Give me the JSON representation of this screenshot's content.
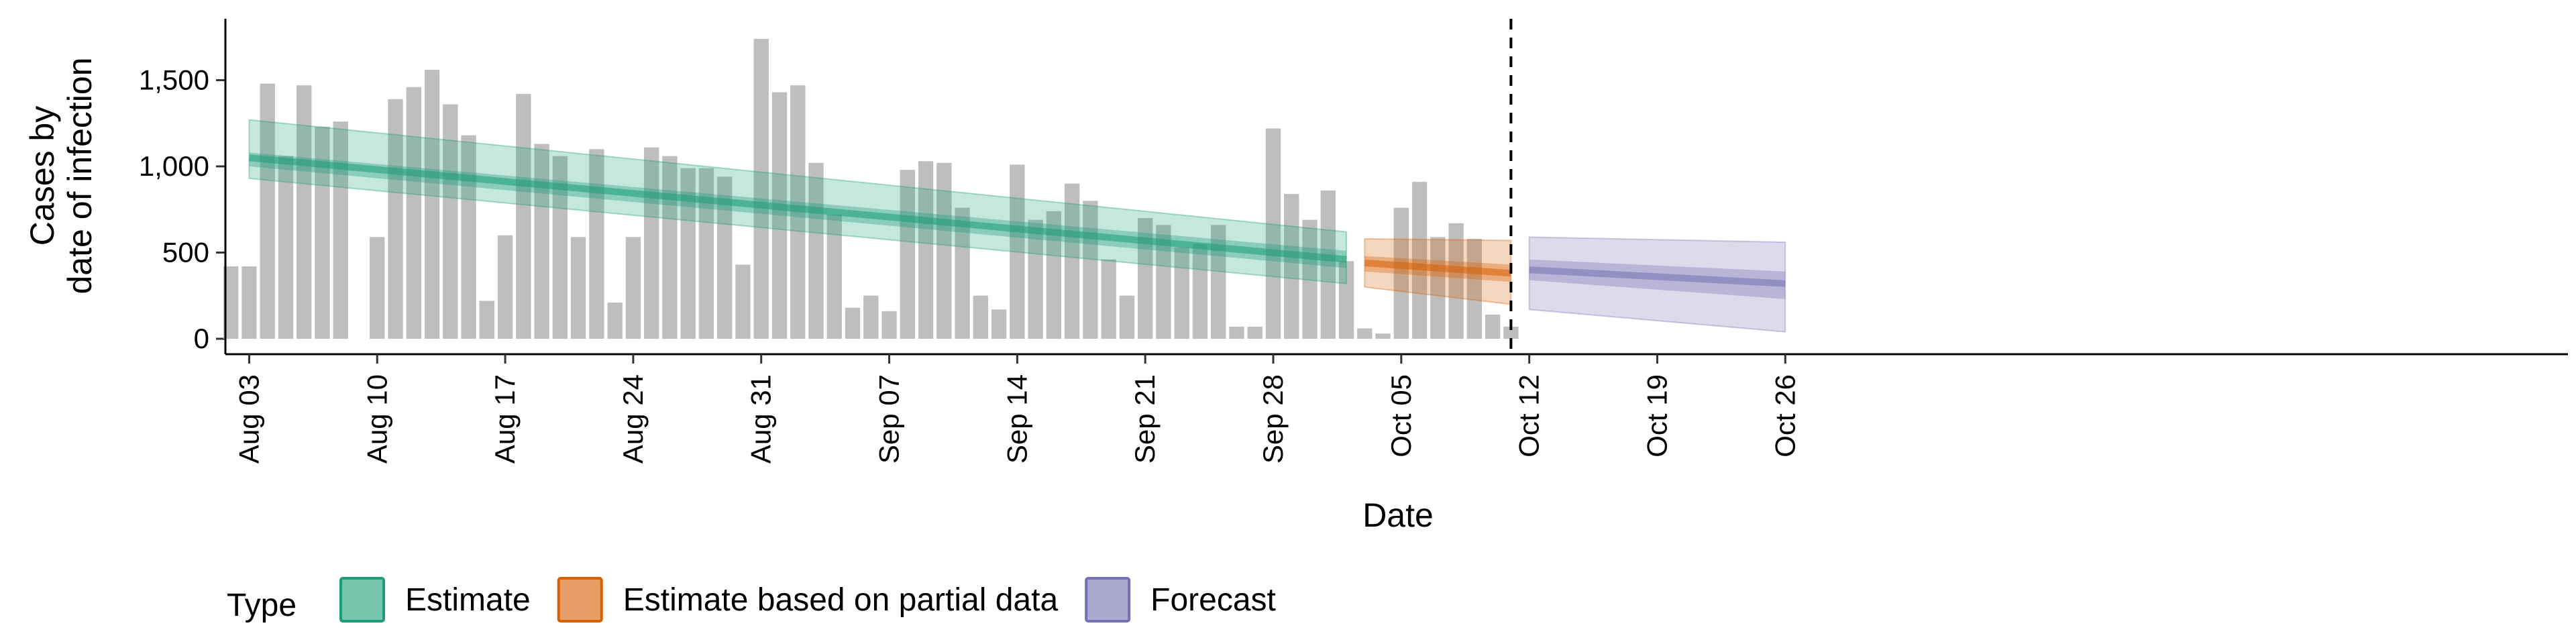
{
  "chart_data": {
    "type": "bar",
    "xlabel": "Date",
    "ylabel_lines": [
      "Cases by",
      "date of infection"
    ],
    "ylim": [
      0,
      1850
    ],
    "yticks": [
      {
        "value": 0,
        "label": "0"
      },
      {
        "value": 500,
        "label": "500"
      },
      {
        "value": 1000,
        "label": "1,000"
      },
      {
        "value": 1500,
        "label": "1,500"
      }
    ],
    "x_start_day": -1.3,
    "x_end_day": 126.8,
    "xticks": [
      {
        "day": 0,
        "label": "Aug 03"
      },
      {
        "day": 7,
        "label": "Aug 10"
      },
      {
        "day": 14,
        "label": "Aug 17"
      },
      {
        "day": 21,
        "label": "Aug 24"
      },
      {
        "day": 28,
        "label": "Aug 31"
      },
      {
        "day": 35,
        "label": "Sep 07"
      },
      {
        "day": 42,
        "label": "Sep 14"
      },
      {
        "day": 49,
        "label": "Sep 21"
      },
      {
        "day": 56,
        "label": "Sep 28"
      },
      {
        "day": 63,
        "label": "Oct 05"
      },
      {
        "day": 70,
        "label": "Oct 12"
      },
      {
        "day": 77,
        "label": "Oct 19"
      },
      {
        "day": 84,
        "label": "Oct 26"
      }
    ],
    "bars_start_day": -1,
    "bar_values": [
      420,
      420,
      1480,
      1060,
      1470,
      1230,
      1260,
      0,
      590,
      1390,
      1460,
      1560,
      1360,
      1180,
      220,
      600,
      1420,
      1130,
      1060,
      590,
      1100,
      210,
      590,
      1110,
      1060,
      990,
      990,
      940,
      430,
      1740,
      1430,
      1470,
      1020,
      720,
      180,
      250,
      160,
      980,
      1030,
      1020,
      760,
      250,
      170,
      1010,
      690,
      740,
      900,
      800,
      460,
      250,
      700,
      660,
      530,
      550,
      660,
      70,
      70,
      1220,
      840,
      690,
      860,
      450,
      60,
      30,
      760,
      910,
      590,
      670,
      580,
      140,
      70
    ],
    "cutoff_day": 69,
    "series": [
      {
        "name": "Estimate",
        "color": "#1b9e77",
        "days": [
          0,
          60
        ],
        "median": [
          1050,
          460
        ],
        "inner": [
          [
            1000,
            410
          ],
          [
            1080,
            510
          ]
        ],
        "outer": [
          [
            930,
            320
          ],
          [
            1270,
            620
          ]
        ]
      },
      {
        "name": "Estimate based on partial data",
        "color": "#d95f02",
        "days": [
          61,
          69
        ],
        "median": [
          440,
          380
        ],
        "inner": [
          [
            390,
            330
          ],
          [
            480,
            430
          ]
        ],
        "outer": [
          [
            300,
            200
          ],
          [
            580,
            570
          ]
        ]
      },
      {
        "name": "Forecast",
        "color": "#7570b3",
        "days": [
          70,
          84
        ],
        "median": [
          400,
          320
        ],
        "inner": [
          [
            340,
            230
          ],
          [
            460,
            390
          ]
        ],
        "outer": [
          [
            170,
            40
          ],
          [
            590,
            560
          ]
        ]
      }
    ],
    "legend": {
      "title": "Type",
      "position": "bottom",
      "entries": [
        "Estimate",
        "Estimate based on partial data",
        "Forecast"
      ]
    }
  }
}
